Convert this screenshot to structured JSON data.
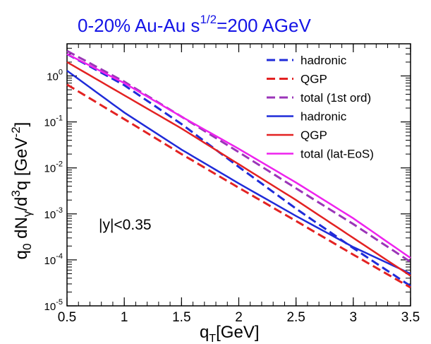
{
  "chart_data": {
    "type": "line",
    "title_main": "0-20% Au-Au  s",
    "title_sup": "1/2",
    "title_tail": "=200 AGeV",
    "xlabel_main": "q",
    "xlabel_sub": "T",
    "xlabel_tail": "[GeV]",
    "ylabel": "q0 dNγ/d3q  [GeV-2]",
    "xlim": [
      0.5,
      3.5
    ],
    "ylim": [
      1e-05,
      5
    ],
    "y_scale": "log",
    "grid": false,
    "legend_position": "top-right",
    "annotation": "|y|<0.35",
    "x_ticks": [
      "0.5",
      "1",
      "1.5",
      "2",
      "2.5",
      "3",
      "3.5"
    ],
    "y_ticks": [
      {
        "base": "10",
        "exp": "-5"
      },
      {
        "base": "10",
        "exp": "-4"
      },
      {
        "base": "10",
        "exp": "-3"
      },
      {
        "base": "10",
        "exp": "-2"
      },
      {
        "base": "10",
        "exp": "-1"
      },
      {
        "base": "10",
        "exp": "0"
      }
    ],
    "series": [
      {
        "name": "hadronic",
        "color": "#1f2bd9",
        "style": "dashed",
        "x": [
          0.5,
          1.0,
          1.5,
          2.0,
          2.5,
          3.0,
          3.5
        ],
        "y": [
          3.0,
          0.63,
          0.09,
          0.0105,
          0.0013,
          0.00018,
          2.7e-05
        ]
      },
      {
        "name": "QGP",
        "color": "#e32222",
        "style": "dashed",
        "x": [
          0.5,
          1.0,
          1.5,
          2.0,
          2.5,
          3.0,
          3.5
        ],
        "y": [
          0.65,
          0.115,
          0.02,
          0.0037,
          0.0007,
          0.00013,
          2.5e-05
        ]
      },
      {
        "name": "total (1st ord)",
        "color": "#9b35b8",
        "style": "dashed",
        "x": [
          0.5,
          1.0,
          1.5,
          2.0,
          2.5,
          3.0,
          3.5
        ],
        "y": [
          3.5,
          0.75,
          0.13,
          0.022,
          0.0036,
          0.0006,
          9e-05
        ]
      },
      {
        "name": "hadronic",
        "color": "#1f2bd9",
        "style": "solid",
        "x": [
          0.5,
          1.0,
          1.5,
          2.0,
          2.5,
          3.0,
          3.5
        ],
        "y": [
          1.3,
          0.16,
          0.025,
          0.0046,
          0.0009,
          0.00019,
          5e-05
        ]
      },
      {
        "name": "QGP",
        "color": "#e32222",
        "style": "solid",
        "x": [
          0.5,
          1.0,
          1.5,
          2.0,
          2.5,
          3.0,
          3.5
        ],
        "y": [
          2.0,
          0.38,
          0.072,
          0.012,
          0.002,
          0.0003,
          4.5e-05
        ]
      },
      {
        "name": "total (lat-EoS)",
        "color": "#ee22ee",
        "style": "solid",
        "x": [
          0.5,
          1.0,
          1.5,
          2.0,
          2.5,
          3.0,
          3.5
        ],
        "y": [
          3.0,
          0.7,
          0.13,
          0.026,
          0.0048,
          0.0008,
          0.00011
        ]
      }
    ]
  }
}
